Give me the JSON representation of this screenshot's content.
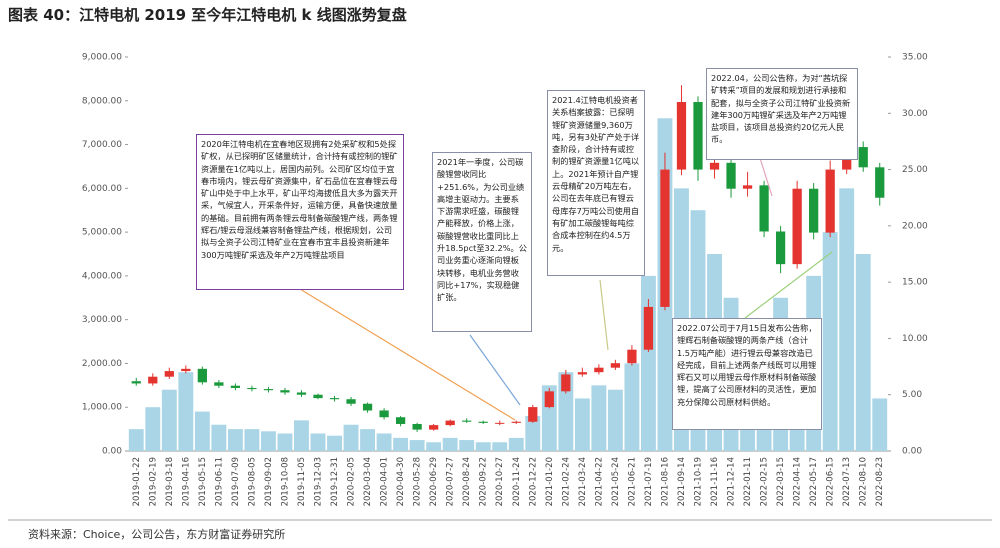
{
  "title": "图表 40：江特电机 2019 至今年江特电机 k 线图涨势复盘",
  "source": "资料来源：Choice，公司公告，东方财富证券研究所",
  "chart_data": {
    "type": "candlestick",
    "categories": [
      "2019-01-22",
      "2019-02-19",
      "2019-03-18",
      "2019-04-16",
      "2019-05-15",
      "2019-06-11",
      "2019-07-09",
      "2019-08-05",
      "2019-09-02",
      "2019-10-08",
      "2019-11-05",
      "2019-12-03",
      "2019-12-31",
      "2020-02-05",
      "2020-03-04",
      "2020-04-01",
      "2020-04-30",
      "2020-05-28",
      "2020-06-29",
      "2020-07-27",
      "2020-08-24",
      "2020-09-22",
      "2020-10-27",
      "2020-11-24",
      "2020-12-22",
      "2021-01-20",
      "2021-02-24",
      "2021-03-24",
      "2021-04-22",
      "2021-05-24",
      "2021-06-21",
      "2021-07-19",
      "2021-08-16",
      "2021-09-14",
      "2021-10-19",
      "2021-11-16",
      "2021-12-14",
      "2022-01-11",
      "2022-02-15",
      "2022-03-15",
      "2022-04-14",
      "2022-05-17",
      "2022-06-15",
      "2022-07-13",
      "2022-08-10",
      "2022-08-23"
    ],
    "open": [
      6.2,
      6.0,
      6.6,
      7.1,
      7.3,
      6.1,
      5.8,
      5.6,
      5.5,
      5.4,
      5.2,
      5.0,
      4.7,
      4.6,
      4.2,
      3.6,
      3.0,
      2.4,
      1.9,
      2.3,
      2.7,
      2.6,
      2.5,
      2.5,
      2.6,
      3.9,
      5.3,
      6.8,
      7.0,
      7.4,
      7.8,
      9.0,
      12.8,
      25.0,
      31.0,
      25.0,
      25.6,
      23.3,
      23.6,
      19.5,
      16.6,
      23.3,
      19.4,
      25.0,
      27.0,
      25.2
    ],
    "high": [
      6.5,
      6.9,
      7.4,
      7.6,
      7.5,
      6.3,
      6.0,
      5.8,
      5.7,
      5.6,
      5.4,
      5.1,
      4.9,
      4.8,
      4.3,
      3.8,
      3.1,
      2.5,
      2.4,
      2.8,
      2.9,
      2.7,
      2.7,
      2.7,
      4.1,
      5.6,
      7.2,
      7.4,
      7.7,
      8.1,
      9.4,
      13.5,
      26.5,
      32.5,
      31.5,
      27.0,
      26.0,
      24.8,
      24.0,
      20.0,
      24.0,
      23.8,
      25.8,
      28.0,
      27.5,
      25.6
    ],
    "low": [
      5.8,
      5.8,
      6.4,
      6.9,
      5.9,
      5.6,
      5.4,
      5.3,
      5.2,
      5.0,
      4.8,
      4.6,
      4.4,
      4.0,
      3.4,
      2.8,
      2.2,
      1.7,
      1.8,
      2.2,
      2.5,
      2.4,
      2.3,
      2.4,
      2.5,
      3.8,
      5.1,
      6.6,
      6.8,
      7.2,
      7.6,
      8.8,
      12.5,
      24.5,
      24.0,
      24.2,
      22.5,
      22.6,
      19.0,
      15.8,
      16.2,
      18.8,
      19.0,
      24.6,
      24.8,
      21.8
    ],
    "close": [
      6.0,
      6.6,
      7.1,
      7.3,
      6.1,
      5.8,
      5.6,
      5.5,
      5.4,
      5.2,
      5.0,
      4.7,
      4.6,
      4.2,
      3.6,
      3.0,
      2.4,
      1.9,
      2.3,
      2.7,
      2.6,
      2.5,
      2.5,
      2.6,
      3.9,
      5.3,
      6.8,
      7.0,
      7.4,
      7.8,
      9.0,
      12.8,
      25.0,
      31.0,
      25.0,
      25.6,
      23.3,
      23.6,
      19.5,
      16.6,
      23.3,
      19.4,
      25.0,
      27.0,
      25.2,
      22.5
    ],
    "volume": [
      500,
      1000,
      1400,
      1800,
      900,
      600,
      500,
      500,
      450,
      400,
      700,
      400,
      350,
      600,
      500,
      400,
      300,
      250,
      200,
      300,
      250,
      200,
      200,
      300,
      800,
      1500,
      1800,
      1200,
      1500,
      1400,
      2000,
      4000,
      7600,
      6000,
      5500,
      4500,
      3500,
      2500,
      2000,
      3500,
      3000,
      4000,
      5000,
      6000,
      4500,
      1200
    ],
    "volume_color": "#a9d5e6",
    "up_color": "#e3342f",
    "down_color": "#1a9a3c",
    "ylim": [
      0,
      9000
    ],
    "yticks": [
      {
        "value": 0,
        "label": "0.00"
      },
      {
        "value": 1000,
        "label": "1,000.00"
      },
      {
        "value": 2000,
        "label": "2,000.00"
      },
      {
        "value": 3000,
        "label": "3,000.00"
      },
      {
        "value": 4000,
        "label": "4,000.00"
      },
      {
        "value": 5000,
        "label": "5,000.00"
      },
      {
        "value": 6000,
        "label": "6,000.00"
      },
      {
        "value": 7000,
        "label": "7,000.00"
      },
      {
        "value": 8000,
        "label": "8,000.00"
      },
      {
        "value": 9000,
        "label": "9,000.00"
      }
    ],
    "y2lim": [
      0,
      35
    ],
    "y2ticks": [
      {
        "value": 0,
        "label": "0.00"
      },
      {
        "value": 5,
        "label": "5.00"
      },
      {
        "value": 10,
        "label": "10.00"
      },
      {
        "value": 15,
        "label": "15.00"
      },
      {
        "value": 20,
        "label": "20.00"
      },
      {
        "value": 25,
        "label": "25.00"
      },
      {
        "value": 30,
        "label": "30.00"
      },
      {
        "value": 35,
        "label": "35.00"
      }
    ],
    "annotations": [
      "2020年江特电机在宜春地区现拥有2处采矿权和5处探矿权，从已探明矿区储量统计，合计持有或控制的锂矿资源量在1亿吨以上，居国内前列。公司矿区均位于宜春市境内，锂云母矿资源集中，矿石品位在宜春锂云母矿山中处于中上水平，矿山平均海拔低且大多为露天开采，气候宜人，开采条件好，运输方便，具备快速放量的基础。目前拥有两条锂云母制备碳酸锂产线，两条锂辉石/锂云母混线兼容制备锂盐产线，根据规划，公司拟与全资子公司江特矿业在宜春市宜丰县投资新建年300万吨锂矿采选及年产2万吨锂盐项目",
      "2021年一季度，公司碳酸锂营收同比+251.6%，为公司业绩高增主驱动力。主要系下游需求旺盛，碳酸锂产能释放，价格上涨，碳酸锂营收比重同比上升18.5pct至32.2%。公司业务重心逐渐向锂板块转移，电机业务营收同比+17%，实现稳健扩张。",
      "2021.4江特电机投资者关系档案披露：已探明锂矿资源储量9,360万吨，另有3处矿产处于详查阶段，合计持有或控制的锂矿资源量1亿吨以上。2021年预计自产锂云母精矿20万吨左右，公司在去年底已有锂云母库存7万吨公司使用自有矿加工碳酸锂每吨综合成本控制在约4.5万元。",
      "2022.04，公司公告称，为对“茜坑探矿转采”项目的发展和规划进行承接和配套，拟与全资子公司江特矿业投资新建年300万吨锂矿采选及年产2万吨锂盐项目，该项目总投资约20亿元人民币。",
      "2022.07公司于7月15日发布公告称，锂辉石制备碳酸锂的两条产线（合计1.5万吨产能）进行锂云母兼容改造已经完成，目前上述两条产线既可以用锂辉石又可以用锂云母作原材料制备碳酸锂，提高了公司原材料的灵活性，更加充分保障公司原材料供给。"
    ]
  }
}
